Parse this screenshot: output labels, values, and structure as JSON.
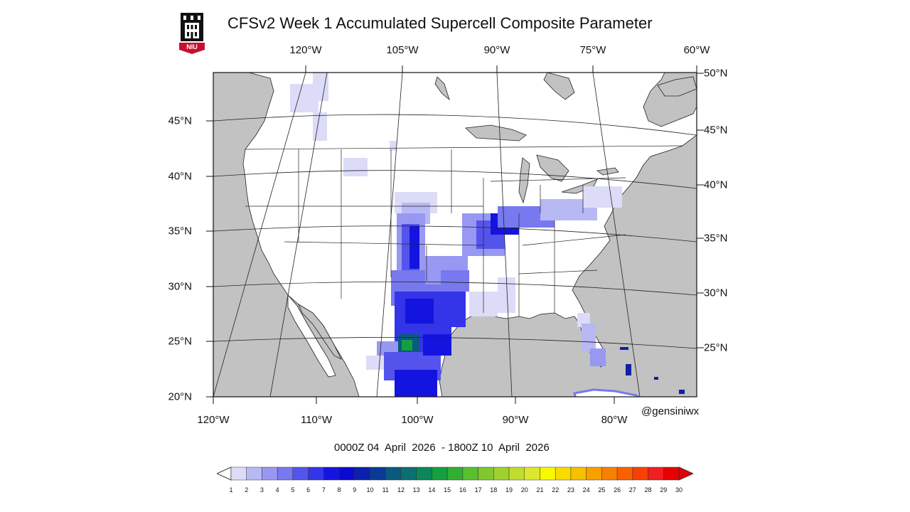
{
  "header": {
    "title": "CFSv2 Week 1 Accumulated Supercell Composite Parameter",
    "logo_text": "NIU",
    "logo_color": "#c8102e"
  },
  "map": {
    "top_longitudes": [
      "120°W",
      "105°W",
      "90°W",
      "75°W",
      "60°W"
    ],
    "bottom_longitudes": [
      "120°W",
      "110°W",
      "100°W",
      "90°W",
      "80°W"
    ],
    "left_latitudes": [
      "45°N",
      "40°N",
      "35°N",
      "30°N",
      "25°N",
      "20°N"
    ],
    "right_latitudes": [
      "50°N",
      "45°N",
      "40°N",
      "35°N",
      "30°N",
      "25°N"
    ],
    "credit": "@gensiniwx",
    "date_range": "0000Z 04  April  2026  - 1800Z 10  April  2026",
    "ocean_color": "#c2c2c2",
    "land_color": "#ffffff"
  },
  "colorbar": {
    "labels": [
      "1",
      "2",
      "3",
      "4",
      "5",
      "6",
      "7",
      "8",
      "9",
      "10",
      "11",
      "12",
      "13",
      "14",
      "15",
      "16",
      "17",
      "18",
      "19",
      "20",
      "21",
      "22",
      "23",
      "24",
      "25",
      "26",
      "27",
      "28",
      "29",
      "30"
    ],
    "colors": [
      "#dcdcf8",
      "#b8b8f5",
      "#9898f2",
      "#7878ef",
      "#5454ec",
      "#3434e8",
      "#1414e0",
      "#0a0ad0",
      "#0a20b0",
      "#0a3a96",
      "#0a5a80",
      "#0a7070",
      "#0a8858",
      "#12a040",
      "#30b030",
      "#58c030",
      "#80c830",
      "#a0d030",
      "#c0dc30",
      "#dce830",
      "#f8f800",
      "#f8dc00",
      "#f8c000",
      "#f8a000",
      "#f88000",
      "#f86000",
      "#f84000",
      "#f02020",
      "#e80000"
    ],
    "low_color": "#ffffff",
    "high_color": "#e80000"
  }
}
